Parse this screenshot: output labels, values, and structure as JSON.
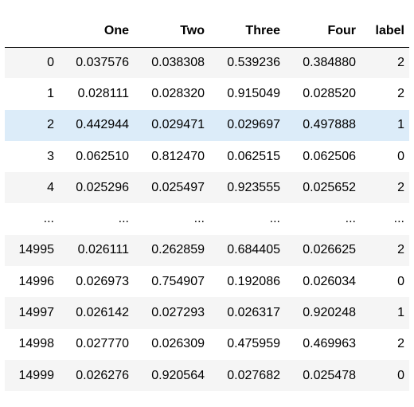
{
  "dataframe": {
    "columns": [
      "",
      "One",
      "Two",
      "Three",
      "Four",
      "label"
    ],
    "rows": [
      {
        "index": "0",
        "One": "0.037576",
        "Two": "0.038308",
        "Three": "0.539236",
        "Four": "0.384880",
        "label": "2"
      },
      {
        "index": "1",
        "One": "0.028111",
        "Two": "0.028320",
        "Three": "0.915049",
        "Four": "0.028520",
        "label": "2"
      },
      {
        "index": "2",
        "One": "0.442944",
        "Two": "0.029471",
        "Three": "0.029697",
        "Four": "0.497888",
        "label": "1"
      },
      {
        "index": "3",
        "One": "0.062510",
        "Two": "0.812470",
        "Three": "0.062515",
        "Four": "0.062506",
        "label": "0"
      },
      {
        "index": "4",
        "One": "0.025296",
        "Two": "0.025497",
        "Three": "0.923555",
        "Four": "0.025652",
        "label": "2"
      },
      {
        "index": "...",
        "One": "...",
        "Two": "...",
        "Three": "...",
        "Four": "...",
        "label": "..."
      },
      {
        "index": "14995",
        "One": "0.026111",
        "Two": "0.262859",
        "Three": "0.684405",
        "Four": "0.026625",
        "label": "2"
      },
      {
        "index": "14996",
        "One": "0.026973",
        "Two": "0.754907",
        "Three": "0.192086",
        "Four": "0.026034",
        "label": "0"
      },
      {
        "index": "14997",
        "One": "0.026142",
        "Two": "0.027293",
        "Three": "0.026317",
        "Four": "0.920248",
        "label": "1"
      },
      {
        "index": "14998",
        "One": "0.027770",
        "Two": "0.026309",
        "Three": "0.475959",
        "Four": "0.469963",
        "label": "2"
      },
      {
        "index": "14999",
        "One": "0.026276",
        "Two": "0.920564",
        "Three": "0.027682",
        "Four": "0.025478",
        "label": "0"
      }
    ],
    "colors": {
      "stripe": "#f5f5f5",
      "hover_highlight": "#dcecf9",
      "background": "#ffffff"
    }
  }
}
